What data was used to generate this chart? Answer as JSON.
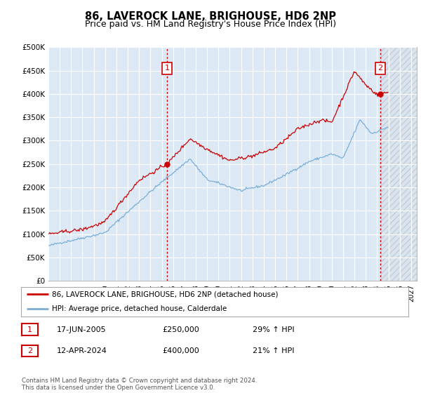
{
  "title": "86, LAVEROCK LANE, BRIGHOUSE, HD6 2NP",
  "subtitle": "Price paid vs. HM Land Registry's House Price Index (HPI)",
  "ylim": [
    0,
    500000
  ],
  "yticks": [
    0,
    50000,
    100000,
    150000,
    200000,
    250000,
    300000,
    350000,
    400000,
    450000,
    500000
  ],
  "ytick_labels": [
    "£0",
    "£50K",
    "£100K",
    "£150K",
    "£200K",
    "£250K",
    "£300K",
    "£350K",
    "£400K",
    "£450K",
    "£500K"
  ],
  "plot_bg_color": "#dce9f5",
  "grid_color": "#ffffff",
  "line1_color": "#cc0000",
  "line2_color": "#7aaed6",
  "annotation_box_color": "#cc0000",
  "purchase1_x": 2005.46,
  "purchase1_y": 250000,
  "purchase2_x": 2024.28,
  "purchase2_y": 400000,
  "vline1_x": 2005.46,
  "vline2_x": 2024.28,
  "legend1_text": "86, LAVEROCK LANE, BRIGHOUSE, HD6 2NP (detached house)",
  "legend2_text": "HPI: Average price, detached house, Calderdale",
  "note1_date": "17-JUN-2005",
  "note1_price": "£250,000",
  "note1_hpi": "29% ↑ HPI",
  "note2_date": "12-APR-2024",
  "note2_price": "£400,000",
  "note2_hpi": "21% ↑ HPI",
  "footer": "Contains HM Land Registry data © Crown copyright and database right 2024.\nThis data is licensed under the Open Government Licence v3.0.",
  "future_start_x": 2024.33,
  "xlim_start": 1995.0,
  "xlim_end": 2027.5
}
